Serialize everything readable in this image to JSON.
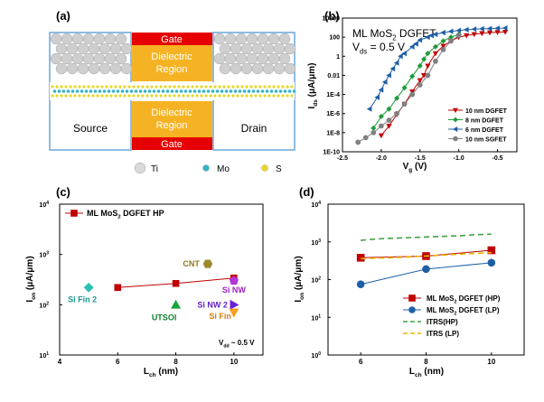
{
  "panels": {
    "a": {
      "label": "(a)",
      "gate_top": "Gate",
      "dielectric_top_1": "Dielectric",
      "dielectric_top_2": "Region",
      "dielectric_bottom_1": "Dielectric",
      "dielectric_bottom_2": "Region",
      "gate_bottom": "Gate",
      "source": "Source",
      "drain": "Drain",
      "legend": [
        {
          "symbol": "Ti",
          "color": "#d9d9d9"
        },
        {
          "symbol": "Mo",
          "color": "#36b3c9"
        },
        {
          "symbol": "S",
          "color": "#e6d62a"
        }
      ]
    },
    "b": {
      "label": "(b)"
    },
    "c": {
      "label": "(c)"
    },
    "d": {
      "label": "(d)"
    }
  },
  "colors": {
    "red": "#c00000",
    "green": "#1f9a3a",
    "blue": "#1f5fa8",
    "gray": "#808080",
    "gate": "#e60000",
    "dielectric": "#f5b324",
    "box_border": "#6aa7d8"
  },
  "chart_data": [
    {
      "id": "b",
      "type": "line",
      "annotation_1": "ML MoS",
      "annotation_1_sub": "2",
      "annotation_1_tail": " DGFET",
      "annotation_2": "V",
      "annotation_2_sub": "ds",
      "annotation_2_tail": " = 0.5 V",
      "xlabel": "V",
      "xlabel_sub": "g",
      "xlabel_unit": " (V)",
      "ylabel": "I",
      "ylabel_sub": "ds",
      "ylabel_unit": " (μA/μm)",
      "yscale": "log",
      "xlim": [
        -2.5,
        -0.25
      ],
      "ylim": [
        1e-10,
        10000
      ],
      "x_ticks": [
        "-2.5",
        "-2.0",
        "-1.5",
        "-1.0",
        "-0.5"
      ],
      "x_tick_values": [
        -2.5,
        -2.0,
        -1.5,
        -1.0,
        -0.5
      ],
      "y_ticks": [
        "1E-10",
        "1E-8",
        "1E-6",
        "1E-4",
        "0.01",
        "1",
        "100",
        "10000"
      ],
      "y_tick_values": [
        1e-10,
        1e-08,
        1e-06,
        0.0001,
        0.01,
        1,
        100,
        10000
      ],
      "legend_position": "bottom-right",
      "series": [
        {
          "name": "10 nm DGFET",
          "color": "#c00000",
          "marker": "tri-down",
          "x": [
            -2.0,
            -1.9,
            -1.8,
            -1.7,
            -1.6,
            -1.5,
            -1.45,
            -1.4,
            -1.3,
            -1.2,
            -1.1,
            -1.0,
            -0.9,
            -0.8,
            -0.7,
            -0.6,
            -0.5,
            -0.4
          ],
          "y": [
            5e-09,
            5e-08,
            8e-07,
            1e-05,
            0.0002,
            0.003,
            0.01,
            0.1,
            2,
            12,
            40,
            100,
            150,
            200,
            250,
            300,
            330,
            350
          ]
        },
        {
          "name": "8 nm DGFET",
          "color": "#1f9a3a",
          "marker": "diamond",
          "x": [
            -2.1,
            -2.0,
            -1.9,
            -1.8,
            -1.7,
            -1.6,
            -1.5,
            -1.45,
            -1.4,
            -1.3,
            -1.2,
            -1.1,
            -1.0
          ],
          "y": [
            3e-08,
            5e-07,
            3e-06,
            4e-05,
            0.0005,
            0.008,
            0.1,
            0.5,
            2,
            10,
            40,
            100,
            200
          ]
        },
        {
          "name": "6 nm DGFET",
          "color": "#1f5fa8",
          "marker": "tri-left",
          "x": [
            -2.15,
            -2.05,
            -2.0,
            -1.95,
            -1.9,
            -1.85,
            -1.8,
            -1.75,
            -1.7,
            -1.6,
            -1.55,
            -1.5,
            -1.4,
            -1.35,
            -1.3,
            -1.2,
            -1.1,
            -1.0,
            -0.9,
            -0.8,
            -0.7,
            -0.6,
            -0.5,
            -0.4
          ],
          "y": [
            3e-06,
            5e-05,
            0.0003,
            0.002,
            0.01,
            0.05,
            0.2,
            1,
            2,
            10,
            20,
            50,
            100,
            150,
            200,
            300,
            400,
            500,
            600,
            700,
            750,
            800,
            850,
            900
          ]
        },
        {
          "name": "10 nm SGFET",
          "color": "#808080",
          "marker": "circle",
          "x": [
            -2.3,
            -2.2,
            -2.1,
            -2.0,
            -1.9,
            -1.8,
            -1.7,
            -1.6,
            -1.5,
            -1.4,
            -1.3,
            -1.2,
            -1.1,
            -1.0
          ],
          "y": [
            1e-09,
            3e-09,
            1e-08,
            5e-08,
            2e-07,
            1e-06,
            1e-05,
            0.0001,
            0.001,
            0.01,
            0.3,
            5,
            40,
            150
          ]
        }
      ]
    },
    {
      "id": "c",
      "type": "scatter",
      "xlabel": "L",
      "xlabel_sub": "ch",
      "xlabel_unit": " (nm)",
      "ylabel": "I",
      "ylabel_sub": "on",
      "ylabel_unit": " (μA/μm)",
      "yscale": "log",
      "xlim": [
        4,
        11
      ],
      "ylim": [
        10,
        10000
      ],
      "x_ticks": [
        "4",
        "6",
        "8",
        "10"
      ],
      "x_tick_values": [
        4,
        6,
        8,
        10
      ],
      "y_ticks": [
        "10",
        "10",
        "10",
        "10"
      ],
      "y_tick_exp": [
        "1",
        "2",
        "3",
        "4"
      ],
      "y_tick_values": [
        10,
        100,
        1000,
        10000
      ],
      "legend_position": "top-left",
      "corner_note": "V",
      "corner_note_sub": "dd",
      "corner_note_tail": " ~ 0.5 V",
      "line_series": {
        "name": "ML MoS",
        "name_sub": "2",
        "name_tail": " DGFET HP",
        "color": "#c00000",
        "x": [
          6,
          8,
          10
        ],
        "y": [
          220,
          265,
          340
        ]
      },
      "points": [
        {
          "label": "Si Fin 2",
          "x": 5,
          "y": 220,
          "color": "#2bbfb0",
          "marker": "diamond",
          "label_color": "#1a9a8f"
        },
        {
          "label": "UTSOI",
          "x": 8,
          "y": 100,
          "color": "#19a53a",
          "marker": "triangle",
          "label_color": "#0f7f2b"
        },
        {
          "label": "CNT",
          "x": 9.1,
          "y": 650,
          "color": "#9c8a2b",
          "marker": "hexagon",
          "label_color": "#8c7a1e"
        },
        {
          "label": "Si NW",
          "x": 10,
          "y": 300,
          "color": "#b535d6",
          "marker": "pentagon",
          "label_color": "#9b1fc2"
        },
        {
          "label": "Si NW 2",
          "x": 10,
          "y": 100,
          "color": "#6f1fd6",
          "marker": "tri-right",
          "label_color": "#5f1dc2"
        },
        {
          "label": "Si Fin",
          "x": 10,
          "y": 70,
          "color": "#f5a020",
          "marker": "tri-down",
          "label_color": "#d97f0a"
        }
      ]
    },
    {
      "id": "d",
      "type": "line",
      "xlabel": "L",
      "xlabel_sub": "ch",
      "xlabel_unit": " (nm)",
      "ylabel": "I",
      "ylabel_sub": "on",
      "ylabel_unit": " (μA/μm)",
      "yscale": "log",
      "xlim": [
        5,
        11
      ],
      "ylim": [
        1,
        10000
      ],
      "x_ticks": [
        "6",
        "8",
        "10"
      ],
      "x_tick_values": [
        6,
        8,
        10
      ],
      "y_ticks": [
        "10",
        "10",
        "10",
        "10",
        "10"
      ],
      "y_tick_exp": [
        "0",
        "1",
        "2",
        "3",
        "4"
      ],
      "y_tick_values": [
        1,
        10,
        100,
        1000,
        10000
      ],
      "legend_position": "bottom-right",
      "series": [
        {
          "name": "ML MoS",
          "name_sub": "2",
          "name_tail": " DGFET (HP)",
          "color": "#c00000",
          "marker": "square",
          "dash": "",
          "x": [
            6,
            8,
            10
          ],
          "y": [
            380,
            420,
            600
          ]
        },
        {
          "name": "ML MoS",
          "name_sub": "2",
          "name_tail": " DGFET (LP)",
          "color": "#1f5fa8",
          "marker": "circle",
          "dash": "",
          "x": [
            6,
            8,
            10
          ],
          "y": [
            75,
            190,
            280
          ]
        },
        {
          "name": "ITRS(HP)",
          "name_sub": "",
          "name_tail": "",
          "color": "#3fa33f",
          "marker": "none",
          "dash": "6,4",
          "x": [
            6,
            6.5,
            7,
            7.5,
            8,
            8.5,
            9,
            9.5,
            10
          ],
          "y": [
            1100,
            1200,
            1250,
            1300,
            1350,
            1400,
            1450,
            1550,
            1600
          ]
        },
        {
          "name": "ITRS (LP)",
          "name_sub": "",
          "name_tail": "",
          "color": "#e6b800",
          "marker": "none",
          "dash": "6,4",
          "x": [
            6,
            7,
            8,
            9,
            10
          ],
          "y": [
            360,
            380,
            420,
            470,
            520
          ]
        }
      ]
    }
  ]
}
